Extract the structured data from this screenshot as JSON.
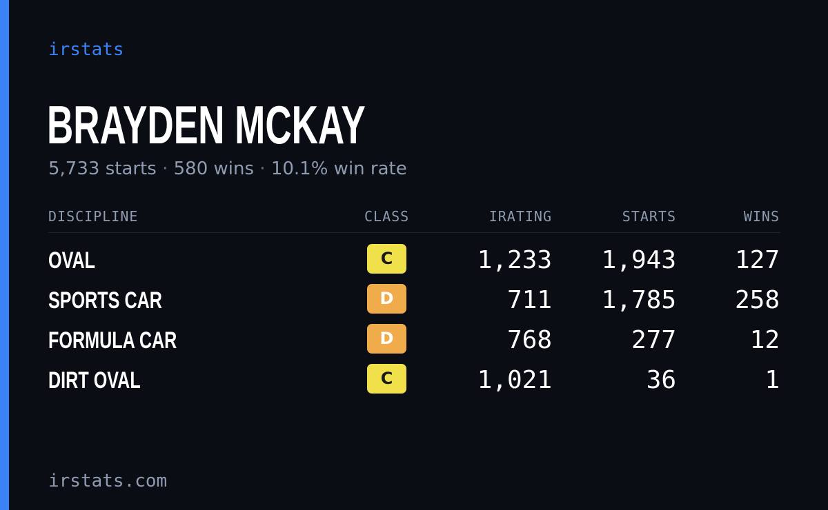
{
  "brand": "irstats",
  "driver": {
    "name": "BRAYDEN MCKAY",
    "starts_text": "5,733 starts",
    "wins_text": "580 wins",
    "win_rate_text": "10.1% win rate",
    "separator": "·"
  },
  "table": {
    "headers": {
      "discipline": "DISCIPLINE",
      "class": "CLASS",
      "irating": "IRATING",
      "starts": "STARTS",
      "wins": "WINS"
    },
    "rows": [
      {
        "discipline": "OVAL",
        "class": "C",
        "class_color": "#f0e04a",
        "class_text_color": "#1a1a1a",
        "irating": "1,233",
        "starts": "1,943",
        "wins": "127"
      },
      {
        "discipline": "SPORTS CAR",
        "class": "D",
        "class_color": "#f0ac4a",
        "class_text_color": "#ffffff",
        "irating": "711",
        "starts": "1,785",
        "wins": "258"
      },
      {
        "discipline": "FORMULA CAR",
        "class": "D",
        "class_color": "#f0ac4a",
        "class_text_color": "#ffffff",
        "irating": "768",
        "starts": "277",
        "wins": "12"
      },
      {
        "discipline": "DIRT OVAL",
        "class": "C",
        "class_color": "#f0e04a",
        "class_text_color": "#1a1a1a",
        "irating": "1,021",
        "starts": "36",
        "wins": "1"
      }
    ]
  },
  "footer": {
    "url": "irstats.com"
  },
  "colors": {
    "accent": "#3b82f6",
    "background": "#0a0d14",
    "muted_text": "#8f9bb0"
  }
}
